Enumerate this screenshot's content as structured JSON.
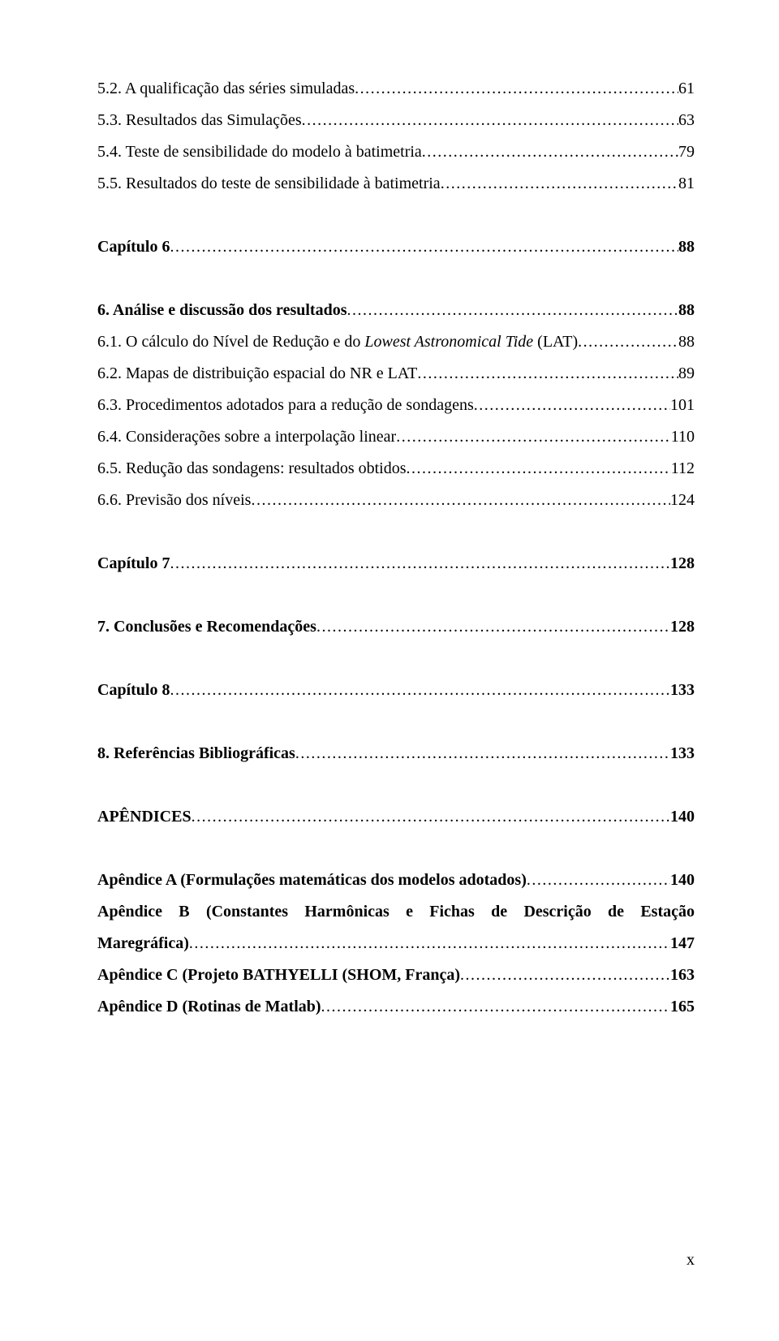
{
  "entries": [
    {
      "type": "line",
      "bold": false,
      "label": "5.2. A qualificação das séries simuladas",
      "page": "61"
    },
    {
      "type": "line",
      "bold": false,
      "label": "5.3. Resultados das Simulações",
      "page": "63"
    },
    {
      "type": "line",
      "bold": false,
      "label": "5.4. Teste de sensibilidade do modelo à batimetria",
      "page": "79"
    },
    {
      "type": "line",
      "bold": false,
      "label": "5.5. Resultados do teste de sensibilidade à batimetria",
      "page": "81"
    },
    {
      "type": "gap"
    },
    {
      "type": "line",
      "bold": true,
      "label": "Capítulo 6",
      "page": "88"
    },
    {
      "type": "gap"
    },
    {
      "type": "line",
      "bold": true,
      "label": "6. Análise e discussão dos resultados",
      "page": "88"
    },
    {
      "type": "mixed",
      "pre": "6.1. O cálculo do Nível de Redução e do ",
      "italic": "Lowest Astronomical Tide",
      "post": " (LAT)",
      "page": "88"
    },
    {
      "type": "line",
      "bold": false,
      "label": "6.2. Mapas de distribuição espacial do NR e LAT",
      "page": "89"
    },
    {
      "type": "line",
      "bold": false,
      "label": "6.3. Procedimentos adotados para a redução de sondagens",
      "page": "101"
    },
    {
      "type": "line",
      "bold": false,
      "label": "6.4. Considerações sobre a interpolação linear",
      "page": "110"
    },
    {
      "type": "line",
      "bold": false,
      "label": "6.5. Redução das sondagens: resultados obtidos",
      "page": "112"
    },
    {
      "type": "line",
      "bold": false,
      "label": "6.6. Previsão dos níveis",
      "page": "124"
    },
    {
      "type": "gap"
    },
    {
      "type": "line",
      "bold": true,
      "label": "Capítulo 7",
      "page": "128"
    },
    {
      "type": "gap"
    },
    {
      "type": "line",
      "bold": true,
      "label": "7. Conclusões e Recomendações",
      "page": "128"
    },
    {
      "type": "gap"
    },
    {
      "type": "line",
      "bold": true,
      "label": "Capítulo 8",
      "page": "133"
    },
    {
      "type": "gap"
    },
    {
      "type": "line",
      "bold": true,
      "label": "8. Referências Bibliográficas",
      "page": "133"
    },
    {
      "type": "gap"
    },
    {
      "type": "line",
      "bold": true,
      "label": "APÊNDICES",
      "page": "140"
    },
    {
      "type": "gap"
    },
    {
      "type": "line",
      "bold": true,
      "label": "Apêndice A (Formulações matemáticas dos modelos adotados)",
      "page": "140"
    },
    {
      "type": "justified",
      "words": [
        "Apêndice",
        "B",
        "(Constantes",
        "Harmônicas",
        "e",
        "Fichas",
        "de",
        "Descrição",
        "de",
        "Estação"
      ],
      "second_label": "Maregráfica)",
      "page": "147"
    },
    {
      "type": "line",
      "bold": true,
      "label": "Apêndice C (Projeto BATHYELLI (SHOM, França)",
      "page": "163"
    },
    {
      "type": "line",
      "bold": true,
      "label": "Apêndice D (Rotinas de Matlab)",
      "page": "165"
    }
  ],
  "footer": "x"
}
